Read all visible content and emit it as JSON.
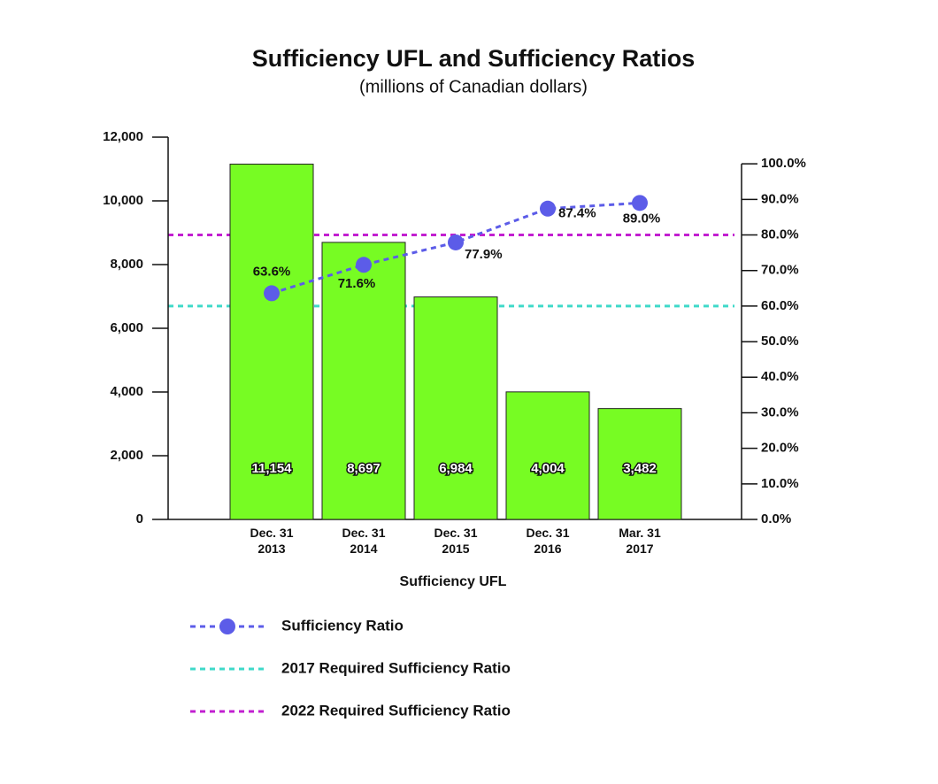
{
  "chart_data": {
    "type": "bar",
    "title": "Sufficiency UFL and Sufficiency Ratios",
    "subtitle": "(millions of Canadian dollars)",
    "x_label": "Sufficiency UFL",
    "categories": [
      "Dec. 31\n2013",
      "Dec. 31\n2014",
      "Dec. 31\n2015",
      "Dec. 31\n2016",
      "Mar. 31\n2017"
    ],
    "ylim": [
      0,
      12000
    ],
    "yticks": [
      0,
      {
        "value": 2000,
        "label": "2,000"
      },
      {
        "value": 4000,
        "label": "4,000"
      },
      {
        "value": 6000,
        "label": "6,000"
      },
      {
        "value": 8000,
        "label": "8,000"
      },
      {
        "value": 10000,
        "label": "10,000"
      },
      {
        "value": 12000,
        "label": "12,000"
      }
    ],
    "y2lim": [
      0,
      107.5
    ],
    "y2ticks": [
      {
        "value": 0,
        "label": "0.0%"
      },
      {
        "value": 10,
        "label": "10.0%"
      },
      {
        "value": 20,
        "label": "20.0%"
      },
      {
        "value": 30,
        "label": "30.0%"
      },
      {
        "value": 40,
        "label": "40.0%"
      },
      {
        "value": 50,
        "label": "50.0%"
      },
      {
        "value": 60,
        "label": "60.0%"
      },
      {
        "value": 70,
        "label": "70.0%"
      },
      {
        "value": 80,
        "label": "80.0%"
      },
      {
        "value": 90,
        "label": "90.0%"
      },
      {
        "value": 100,
        "label": "100.0%"
      }
    ],
    "series": [
      {
        "name": "Sufficiency UFL",
        "type": "bar",
        "color": "#77fc23",
        "values": [
          11154,
          8697,
          6984,
          4004,
          3482
        ],
        "value_labels": [
          "11,154",
          "8,697",
          "6,984",
          "4,004",
          "3,482"
        ]
      },
      {
        "name": "Sufficiency Ratio",
        "type": "line",
        "axis": "y2",
        "color": "#5c5ce8",
        "values": [
          63.6,
          71.6,
          77.9,
          87.4,
          89.0
        ],
        "value_labels": [
          "63.6%",
          "71.6%",
          "77.9%",
          "87.4%",
          "89.0%"
        ]
      }
    ],
    "reference_lines": [
      {
        "name": "2017 Required Sufficiency Ratio",
        "axis": "y2",
        "color": "#3fd9c9",
        "value": 60
      },
      {
        "name": "2022 Required Sufficiency Ratio",
        "axis": "y2",
        "color": "#c21fd0",
        "value": 80
      }
    ]
  }
}
